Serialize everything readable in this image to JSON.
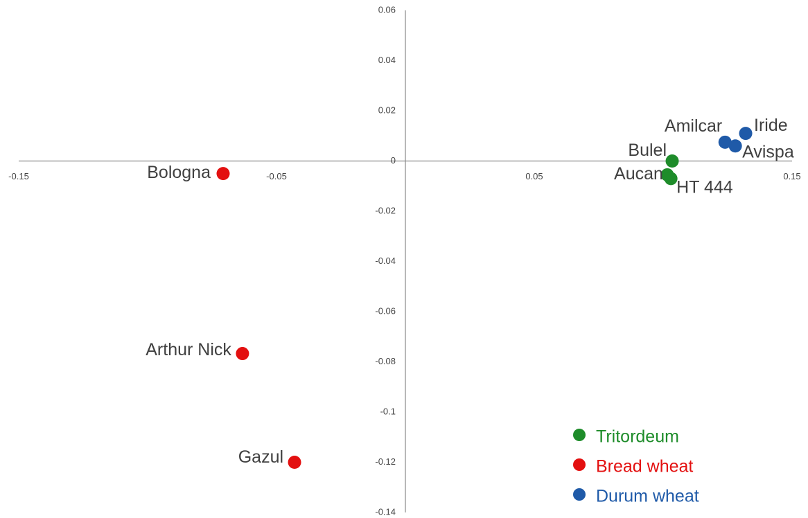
{
  "chart_data": {
    "type": "scatter",
    "xlim": [
      -0.15,
      0.15
    ],
    "ylim": [
      -0.14,
      0.06
    ],
    "xticks": [
      -0.15,
      -0.05,
      0.05,
      0.15
    ],
    "yticks": [
      0.06,
      0.04,
      0.02,
      0,
      -0.02,
      -0.04,
      -0.06,
      -0.08,
      -0.1,
      -0.12,
      -0.14
    ],
    "grid": false,
    "legend": "lower right",
    "series": [
      {
        "name": "Tritordeum",
        "color": "#1e8c2a",
        "labels": [
          "Bulel",
          "Aucan",
          "HT 444"
        ],
        "x": [
          0.1035,
          0.1016,
          0.103
        ],
        "values": [
          0.0,
          -0.0055,
          -0.007
        ]
      },
      {
        "name": "Bread wheat",
        "color": "#e31010",
        "labels": [
          "Bologna",
          "Arthur Nick",
          "Gazul"
        ],
        "x": [
          -0.0707,
          -0.0632,
          -0.043
        ],
        "values": [
          -0.005,
          -0.0767,
          -0.12
        ]
      },
      {
        "name": "Durum wheat",
        "color": "#1f5aa8",
        "labels": [
          "Amilcar",
          "Avispa",
          "Iride"
        ],
        "x": [
          0.124,
          0.128,
          0.132
        ],
        "values": [
          0.0075,
          0.006,
          0.011
        ]
      }
    ]
  }
}
